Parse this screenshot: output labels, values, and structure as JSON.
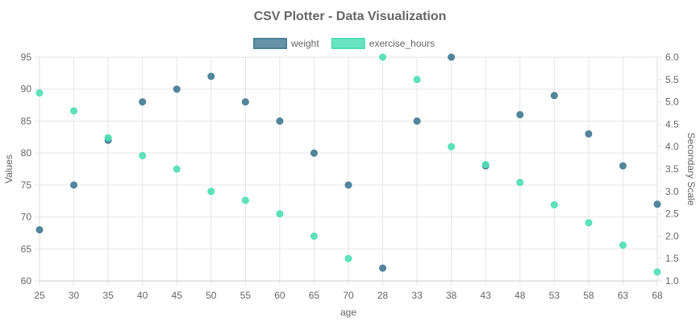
{
  "chart_data": {
    "type": "scatter",
    "title": "CSV Plotter - Data Visualization",
    "xlabel": "age",
    "ylabel": "Values",
    "y2label": "Secondary Scale",
    "categories": [
      "25",
      "30",
      "35",
      "40",
      "45",
      "50",
      "55",
      "60",
      "65",
      "70",
      "28",
      "33",
      "38",
      "43",
      "48",
      "53",
      "58",
      "63",
      "68"
    ],
    "ylim": [
      60,
      95
    ],
    "y2lim": [
      1.0,
      6.0
    ],
    "yticks": [
      60,
      65,
      70,
      75,
      80,
      85,
      90,
      95
    ],
    "y2ticks": [
      1.0,
      1.5,
      2.0,
      2.5,
      3.0,
      3.5,
      4.0,
      4.5,
      5.0,
      5.5,
      6.0
    ],
    "grid": true,
    "legend_position": "top-center",
    "series": [
      {
        "name": "weight",
        "axis": "left",
        "color": "#4a7f97",
        "values": [
          68,
          75,
          82,
          88,
          90,
          92,
          88,
          85,
          80,
          75,
          62,
          85,
          95,
          78,
          86,
          89,
          83,
          78,
          72
        ]
      },
      {
        "name": "exercise_hours",
        "axis": "right",
        "color": "#4fdfb5",
        "values": [
          5.2,
          4.8,
          4.2,
          3.8,
          3.5,
          3.0,
          2.8,
          2.5,
          2.0,
          1.5,
          6.0,
          5.5,
          4.0,
          3.6,
          3.2,
          2.7,
          2.3,
          1.8,
          1.2
        ]
      }
    ]
  }
}
